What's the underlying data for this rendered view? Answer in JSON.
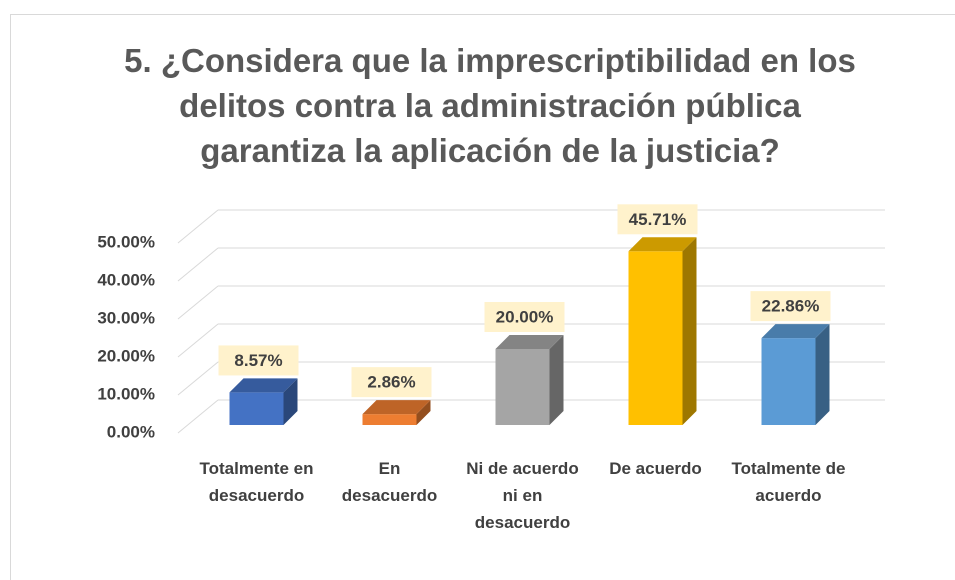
{
  "chart_data": {
    "type": "bar3d",
    "title": "5. ¿Considera que la imprescriptibilidad en los delitos contra la administración pública garantiza la aplicación de la justicia?",
    "categories": [
      "Totalmente en desacuerdo",
      "En desacuerdo",
      "Ni de acuerdo ni en desacuerdo",
      "De acuerdo",
      "Totalmente de acuerdo"
    ],
    "values": [
      8.57,
      2.86,
      20,
      45.71,
      22.86
    ],
    "value_labels": [
      "8.57%",
      "2.86%",
      "20.00%",
      "45.71%",
      "22.86%"
    ],
    "colors": [
      "#4472c4",
      "#ed7d31",
      "#a5a5a5",
      "#ffc000",
      "#5b9bd5"
    ],
    "ylim": [
      0,
      50
    ],
    "yticks": [
      {
        "value": 0,
        "label": "0.00%"
      },
      {
        "value": 10,
        "label": "10.00%"
      },
      {
        "value": 20,
        "label": "20.00%"
      },
      {
        "value": 30,
        "label": "30.00%"
      },
      {
        "value": 40,
        "label": "40.00%"
      },
      {
        "value": 50,
        "label": "50.00%"
      }
    ],
    "grid": true
  }
}
